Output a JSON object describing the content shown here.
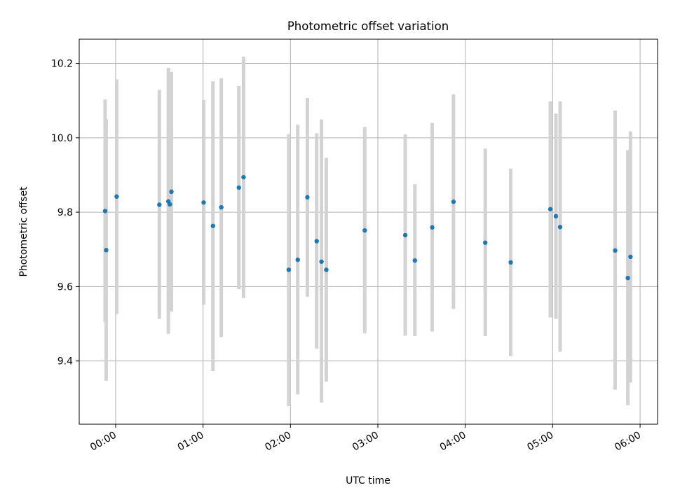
{
  "chart_data": {
    "type": "scatter",
    "title": "Photometric offset variation",
    "xlabel": "UTC time",
    "ylabel": "Photometric offset",
    "x_unit": "minutes since 00:00 UTC",
    "xlim": [
      -25,
      372
    ],
    "ylim": [
      9.23,
      10.265
    ],
    "grid": true,
    "x_ticks": [
      {
        "value": 0,
        "label": "00:00"
      },
      {
        "value": 60,
        "label": "01:00"
      },
      {
        "value": 120,
        "label": "02:00"
      },
      {
        "value": 180,
        "label": "03:00"
      },
      {
        "value": 240,
        "label": "04:00"
      },
      {
        "value": 300,
        "label": "05:00"
      },
      {
        "value": 360,
        "label": "06:00"
      }
    ],
    "y_ticks": [
      {
        "value": 9.4,
        "label": "9.4"
      },
      {
        "value": 9.6,
        "label": "9.6"
      },
      {
        "value": 9.8,
        "label": "9.8"
      },
      {
        "value": 10.0,
        "label": "10.0"
      },
      {
        "value": 10.2,
        "label": "10.2"
      }
    ],
    "colors": {
      "point": "#1f77b4",
      "errorbar": "#d3d3d3",
      "grid": "#b0b0b0",
      "axis": "#000000"
    },
    "points": [
      {
        "x": -7.2,
        "y": 9.803,
        "low": 9.505,
        "high": 10.103
      },
      {
        "x": -6.5,
        "y": 9.698,
        "low": 9.347,
        "high": 10.05
      },
      {
        "x": 0.7,
        "y": 9.842,
        "low": 9.526,
        "high": 10.157
      },
      {
        "x": 30.0,
        "y": 9.82,
        "low": 9.513,
        "high": 10.129
      },
      {
        "x": 36.2,
        "y": 9.829,
        "low": 9.473,
        "high": 10.188
      },
      {
        "x": 37.2,
        "y": 9.821,
        "low": 9.542,
        "high": 10.1
      },
      {
        "x": 38.3,
        "y": 9.855,
        "low": 9.533,
        "high": 10.177
      },
      {
        "x": 60.4,
        "y": 9.826,
        "low": 9.551,
        "high": 10.101
      },
      {
        "x": 66.8,
        "y": 9.763,
        "low": 9.373,
        "high": 10.152
      },
      {
        "x": 72.5,
        "y": 9.813,
        "low": 9.464,
        "high": 10.16
      },
      {
        "x": 84.6,
        "y": 9.866,
        "low": 9.593,
        "high": 10.139
      },
      {
        "x": 87.8,
        "y": 9.894,
        "low": 9.569,
        "high": 10.218
      },
      {
        "x": 118.8,
        "y": 9.645,
        "low": 9.279,
        "high": 10.01
      },
      {
        "x": 125.0,
        "y": 9.672,
        "low": 9.31,
        "high": 10.035
      },
      {
        "x": 131.6,
        "y": 9.84,
        "low": 9.573,
        "high": 10.107
      },
      {
        "x": 138.0,
        "y": 9.722,
        "low": 9.433,
        "high": 10.012
      },
      {
        "x": 141.3,
        "y": 9.667,
        "low": 9.288,
        "high": 10.049
      },
      {
        "x": 144.6,
        "y": 9.645,
        "low": 9.344,
        "high": 9.946
      },
      {
        "x": 171.0,
        "y": 9.751,
        "low": 9.474,
        "high": 10.029
      },
      {
        "x": 198.8,
        "y": 9.738,
        "low": 9.468,
        "high": 10.009
      },
      {
        "x": 205.4,
        "y": 9.67,
        "low": 9.467,
        "high": 9.875
      },
      {
        "x": 217.3,
        "y": 9.759,
        "low": 9.479,
        "high": 10.04
      },
      {
        "x": 231.9,
        "y": 9.828,
        "low": 9.54,
        "high": 10.117
      },
      {
        "x": 253.7,
        "y": 9.718,
        "low": 9.467,
        "high": 9.971
      },
      {
        "x": 271.2,
        "y": 9.665,
        "low": 9.413,
        "high": 9.917
      },
      {
        "x": 298.4,
        "y": 9.808,
        "low": 9.517,
        "high": 10.098
      },
      {
        "x": 302.2,
        "y": 9.789,
        "low": 9.513,
        "high": 10.065
      },
      {
        "x": 305.1,
        "y": 9.76,
        "low": 9.425,
        "high": 10.098
      },
      {
        "x": 342.9,
        "y": 9.697,
        "low": 9.323,
        "high": 10.073
      },
      {
        "x": 351.6,
        "y": 9.623,
        "low": 9.281,
        "high": 9.967
      },
      {
        "x": 353.4,
        "y": 9.68,
        "low": 9.342,
        "high": 10.017
      }
    ]
  }
}
